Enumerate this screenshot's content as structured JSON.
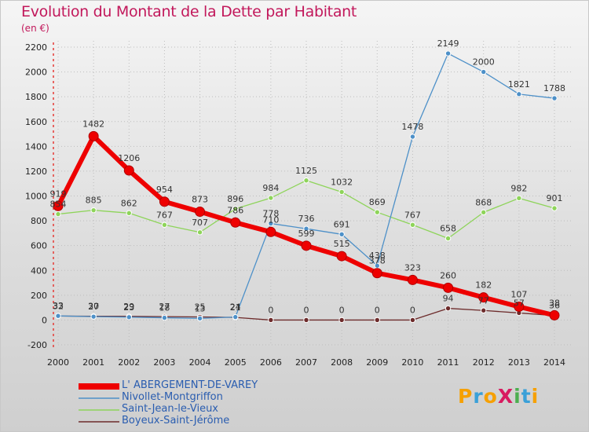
{
  "header": {
    "title": "Evolution du Montant de la Dette par Habitant",
    "unit": "(en €)"
  },
  "logo": {
    "text": "ProXiti",
    "colors": [
      "#f6a000",
      "#3aa0d8",
      "#f6a000",
      "#d81b60",
      "#4caf50",
      "#3aa0d8",
      "#f6a000"
    ]
  },
  "chart_data": {
    "type": "line",
    "x": [
      "2000",
      "2001",
      "2002",
      "2003",
      "2004",
      "2005",
      "2006",
      "2007",
      "2008",
      "2009",
      "2010",
      "2011",
      "2012",
      "2013",
      "2014"
    ],
    "ylim": [
      -200,
      2200
    ],
    "yticks": [
      "-200",
      "0",
      "200",
      "400",
      "600",
      "800",
      "1000",
      "1200",
      "1400",
      "1600",
      "1800",
      "2000",
      "2200"
    ],
    "ytick_values": [
      -200,
      0,
      200,
      400,
      600,
      800,
      1000,
      1200,
      1400,
      1600,
      1800,
      2000,
      2200
    ],
    "grid": true,
    "legend_position": "bottom-left",
    "series": [
      {
        "name": "Boyeux-Saint-Jérôme",
        "color": "#6d2b2b",
        "width": 1.3,
        "values": [
          32,
          30,
          29,
          27,
          25,
          21,
          0,
          0,
          0,
          0,
          0,
          94,
          77,
          57,
          36
        ],
        "labels": [
          "32",
          "30",
          "29",
          "27",
          "25",
          "21",
          "0",
          "0",
          "0",
          "0",
          "0",
          "94",
          "77",
          "57",
          "36"
        ]
      },
      {
        "name": "Saint-Jean-le-Vieux",
        "color": "#8ed45a",
        "width": 1.3,
        "values": [
          854,
          885,
          862,
          767,
          707,
          896,
          984,
          1125,
          1032,
          869,
          767,
          658,
          868,
          982,
          901
        ],
        "labels": [
          "854",
          "885",
          "862",
          "767",
          "707",
          "896",
          "984",
          "1125",
          "1032",
          "869",
          "767",
          "658",
          "868",
          "982",
          "901"
        ]
      },
      {
        "name": "Nivollet-Montgriffon",
        "color": "#4d90c8",
        "width": 1.3,
        "values": [
          33,
          27,
          23,
          18,
          13,
          24,
          778,
          736,
          691,
          438,
          1478,
          2149,
          2000,
          1821,
          1788
        ],
        "labels": [
          "33",
          "27",
          "23",
          "18",
          "13",
          "24",
          "778",
          "736",
          "691",
          "438",
          "1478",
          "2149",
          "2000",
          "1821",
          "1788"
        ]
      },
      {
        "name": "L' ABERGEMENT-DE-VAREY",
        "color": "#ee0000",
        "width": 6,
        "values": [
          919,
          1482,
          1206,
          954,
          873,
          786,
          710,
          599,
          515,
          378,
          323,
          260,
          182,
          107,
          38
        ],
        "labels": [
          "919",
          "1482",
          "1206",
          "954",
          "873",
          "786",
          "710",
          "599",
          "515",
          "378",
          "323",
          "260",
          "182",
          "107",
          "38"
        ]
      }
    ],
    "legend": [
      {
        "name": "L' ABERGEMENT-DE-VAREY",
        "color": "#ee0000"
      },
      {
        "name": "Nivollet-Montgriffon",
        "color": "#4d90c8"
      },
      {
        "name": "Saint-Jean-le-Vieux",
        "color": "#8ed45a"
      },
      {
        "name": "Boyeux-Saint-Jérôme",
        "color": "#6d2b2b"
      }
    ]
  }
}
